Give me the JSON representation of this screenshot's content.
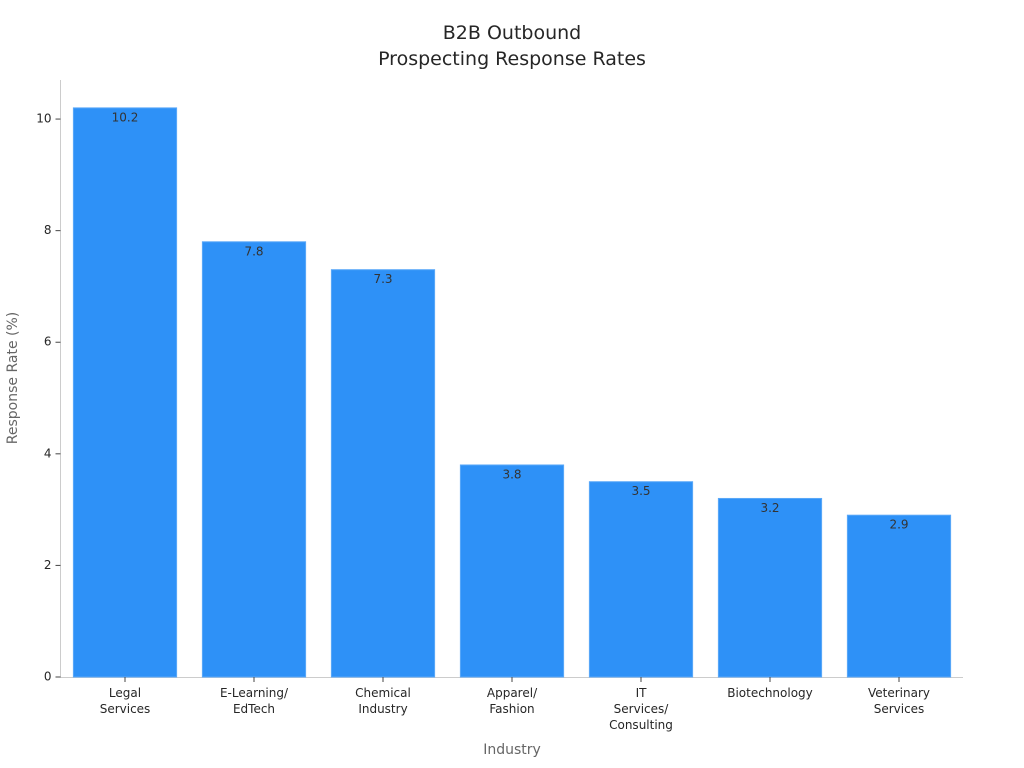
{
  "chart_data": {
    "type": "bar",
    "title": "B2B Outbound\nProspecting Response Rates",
    "x_label": "Industry",
    "y_label": "Response Rate (%)",
    "categories": [
      "Legal\nServices",
      "E-Learning/\nEdTech",
      "Chemical\nIndustry",
      "Apparel/\nFashion",
      "IT\nServices/\nConsulting",
      "Biotechnology",
      "Veterinary\nServices"
    ],
    "values": [
      10.2,
      7.8,
      7.3,
      3.8,
      3.5,
      3.2,
      2.9
    ],
    "color": "#2e91f7",
    "ylim": [
      0,
      10.7
    ],
    "yticks": [
      0,
      2,
      4,
      6,
      8,
      10
    ],
    "grid": false
  }
}
